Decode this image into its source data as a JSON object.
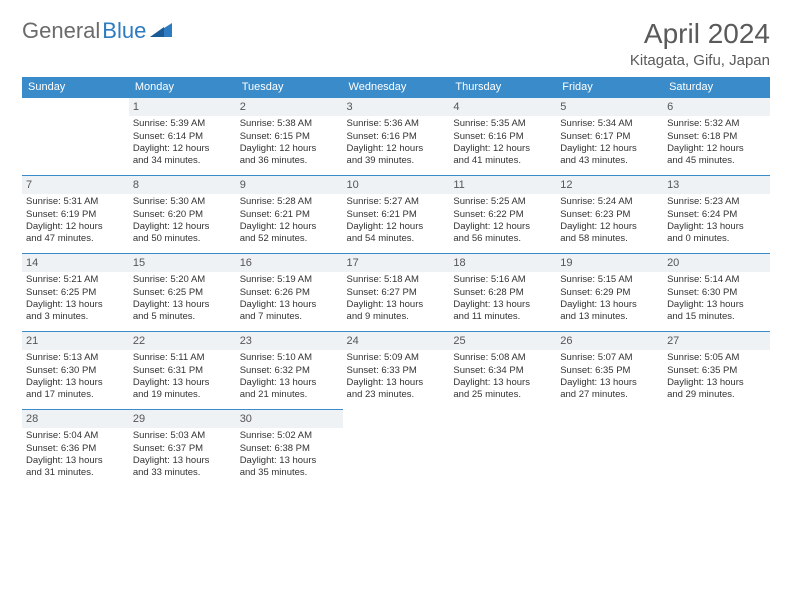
{
  "brand": {
    "part1": "General",
    "part2": "Blue"
  },
  "title": "April 2024",
  "location": "Kitagata, Gifu, Japan",
  "colors": {
    "header_bg": "#3a8bc9",
    "header_text": "#ffffff",
    "daynum_bg": "#eef2f5",
    "border": "#3a8bc9",
    "brand_gray": "#6b6b6b",
    "brand_blue": "#2d7bc0"
  },
  "weekdays": [
    "Sunday",
    "Monday",
    "Tuesday",
    "Wednesday",
    "Thursday",
    "Friday",
    "Saturday"
  ],
  "weeks": [
    [
      {
        "day": "",
        "sunrise": "",
        "sunset": "",
        "daylight1": "",
        "daylight2": ""
      },
      {
        "day": "1",
        "sunrise": "Sunrise: 5:39 AM",
        "sunset": "Sunset: 6:14 PM",
        "daylight1": "Daylight: 12 hours",
        "daylight2": "and 34 minutes."
      },
      {
        "day": "2",
        "sunrise": "Sunrise: 5:38 AM",
        "sunset": "Sunset: 6:15 PM",
        "daylight1": "Daylight: 12 hours",
        "daylight2": "and 36 minutes."
      },
      {
        "day": "3",
        "sunrise": "Sunrise: 5:36 AM",
        "sunset": "Sunset: 6:16 PM",
        "daylight1": "Daylight: 12 hours",
        "daylight2": "and 39 minutes."
      },
      {
        "day": "4",
        "sunrise": "Sunrise: 5:35 AM",
        "sunset": "Sunset: 6:16 PM",
        "daylight1": "Daylight: 12 hours",
        "daylight2": "and 41 minutes."
      },
      {
        "day": "5",
        "sunrise": "Sunrise: 5:34 AM",
        "sunset": "Sunset: 6:17 PM",
        "daylight1": "Daylight: 12 hours",
        "daylight2": "and 43 minutes."
      },
      {
        "day": "6",
        "sunrise": "Sunrise: 5:32 AM",
        "sunset": "Sunset: 6:18 PM",
        "daylight1": "Daylight: 12 hours",
        "daylight2": "and 45 minutes."
      }
    ],
    [
      {
        "day": "7",
        "sunrise": "Sunrise: 5:31 AM",
        "sunset": "Sunset: 6:19 PM",
        "daylight1": "Daylight: 12 hours",
        "daylight2": "and 47 minutes."
      },
      {
        "day": "8",
        "sunrise": "Sunrise: 5:30 AM",
        "sunset": "Sunset: 6:20 PM",
        "daylight1": "Daylight: 12 hours",
        "daylight2": "and 50 minutes."
      },
      {
        "day": "9",
        "sunrise": "Sunrise: 5:28 AM",
        "sunset": "Sunset: 6:21 PM",
        "daylight1": "Daylight: 12 hours",
        "daylight2": "and 52 minutes."
      },
      {
        "day": "10",
        "sunrise": "Sunrise: 5:27 AM",
        "sunset": "Sunset: 6:21 PM",
        "daylight1": "Daylight: 12 hours",
        "daylight2": "and 54 minutes."
      },
      {
        "day": "11",
        "sunrise": "Sunrise: 5:25 AM",
        "sunset": "Sunset: 6:22 PM",
        "daylight1": "Daylight: 12 hours",
        "daylight2": "and 56 minutes."
      },
      {
        "day": "12",
        "sunrise": "Sunrise: 5:24 AM",
        "sunset": "Sunset: 6:23 PM",
        "daylight1": "Daylight: 12 hours",
        "daylight2": "and 58 minutes."
      },
      {
        "day": "13",
        "sunrise": "Sunrise: 5:23 AM",
        "sunset": "Sunset: 6:24 PM",
        "daylight1": "Daylight: 13 hours",
        "daylight2": "and 0 minutes."
      }
    ],
    [
      {
        "day": "14",
        "sunrise": "Sunrise: 5:21 AM",
        "sunset": "Sunset: 6:25 PM",
        "daylight1": "Daylight: 13 hours",
        "daylight2": "and 3 minutes."
      },
      {
        "day": "15",
        "sunrise": "Sunrise: 5:20 AM",
        "sunset": "Sunset: 6:25 PM",
        "daylight1": "Daylight: 13 hours",
        "daylight2": "and 5 minutes."
      },
      {
        "day": "16",
        "sunrise": "Sunrise: 5:19 AM",
        "sunset": "Sunset: 6:26 PM",
        "daylight1": "Daylight: 13 hours",
        "daylight2": "and 7 minutes."
      },
      {
        "day": "17",
        "sunrise": "Sunrise: 5:18 AM",
        "sunset": "Sunset: 6:27 PM",
        "daylight1": "Daylight: 13 hours",
        "daylight2": "and 9 minutes."
      },
      {
        "day": "18",
        "sunrise": "Sunrise: 5:16 AM",
        "sunset": "Sunset: 6:28 PM",
        "daylight1": "Daylight: 13 hours",
        "daylight2": "and 11 minutes."
      },
      {
        "day": "19",
        "sunrise": "Sunrise: 5:15 AM",
        "sunset": "Sunset: 6:29 PM",
        "daylight1": "Daylight: 13 hours",
        "daylight2": "and 13 minutes."
      },
      {
        "day": "20",
        "sunrise": "Sunrise: 5:14 AM",
        "sunset": "Sunset: 6:30 PM",
        "daylight1": "Daylight: 13 hours",
        "daylight2": "and 15 minutes."
      }
    ],
    [
      {
        "day": "21",
        "sunrise": "Sunrise: 5:13 AM",
        "sunset": "Sunset: 6:30 PM",
        "daylight1": "Daylight: 13 hours",
        "daylight2": "and 17 minutes."
      },
      {
        "day": "22",
        "sunrise": "Sunrise: 5:11 AM",
        "sunset": "Sunset: 6:31 PM",
        "daylight1": "Daylight: 13 hours",
        "daylight2": "and 19 minutes."
      },
      {
        "day": "23",
        "sunrise": "Sunrise: 5:10 AM",
        "sunset": "Sunset: 6:32 PM",
        "daylight1": "Daylight: 13 hours",
        "daylight2": "and 21 minutes."
      },
      {
        "day": "24",
        "sunrise": "Sunrise: 5:09 AM",
        "sunset": "Sunset: 6:33 PM",
        "daylight1": "Daylight: 13 hours",
        "daylight2": "and 23 minutes."
      },
      {
        "day": "25",
        "sunrise": "Sunrise: 5:08 AM",
        "sunset": "Sunset: 6:34 PM",
        "daylight1": "Daylight: 13 hours",
        "daylight2": "and 25 minutes."
      },
      {
        "day": "26",
        "sunrise": "Sunrise: 5:07 AM",
        "sunset": "Sunset: 6:35 PM",
        "daylight1": "Daylight: 13 hours",
        "daylight2": "and 27 minutes."
      },
      {
        "day": "27",
        "sunrise": "Sunrise: 5:05 AM",
        "sunset": "Sunset: 6:35 PM",
        "daylight1": "Daylight: 13 hours",
        "daylight2": "and 29 minutes."
      }
    ],
    [
      {
        "day": "28",
        "sunrise": "Sunrise: 5:04 AM",
        "sunset": "Sunset: 6:36 PM",
        "daylight1": "Daylight: 13 hours",
        "daylight2": "and 31 minutes."
      },
      {
        "day": "29",
        "sunrise": "Sunrise: 5:03 AM",
        "sunset": "Sunset: 6:37 PM",
        "daylight1": "Daylight: 13 hours",
        "daylight2": "and 33 minutes."
      },
      {
        "day": "30",
        "sunrise": "Sunrise: 5:02 AM",
        "sunset": "Sunset: 6:38 PM",
        "daylight1": "Daylight: 13 hours",
        "daylight2": "and 35 minutes."
      },
      {
        "day": "",
        "sunrise": "",
        "sunset": "",
        "daylight1": "",
        "daylight2": ""
      },
      {
        "day": "",
        "sunrise": "",
        "sunset": "",
        "daylight1": "",
        "daylight2": ""
      },
      {
        "day": "",
        "sunrise": "",
        "sunset": "",
        "daylight1": "",
        "daylight2": ""
      },
      {
        "day": "",
        "sunrise": "",
        "sunset": "",
        "daylight1": "",
        "daylight2": ""
      }
    ]
  ]
}
